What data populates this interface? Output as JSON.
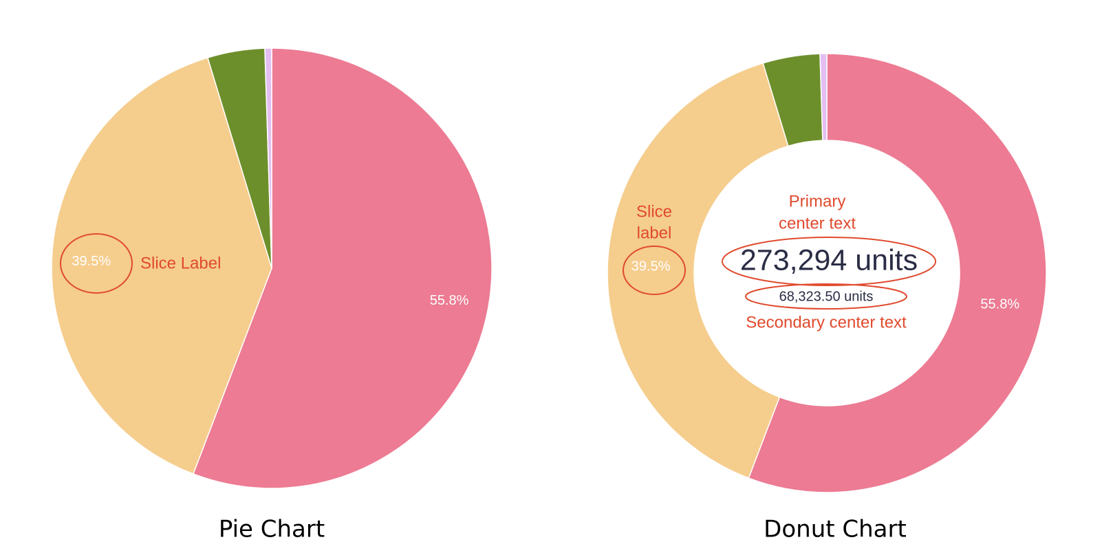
{
  "colors": {
    "pink": "#ec7b93",
    "peach": "#f5cd8d",
    "green": "#6d8f2b",
    "lavender": "#e2bff0",
    "annotation": "#e04a2d",
    "center_text": "#2a2d45"
  },
  "chart_data": [
    {
      "type": "pie",
      "title": "Pie Chart",
      "slices": [
        {
          "value": 55.8,
          "color": "#ec7b93",
          "label": "55.8%"
        },
        {
          "value": 39.5,
          "color": "#f5cd8d",
          "label": "39.5%"
        },
        {
          "value": 4.2,
          "color": "#6d8f2b",
          "label": ""
        },
        {
          "value": 0.5,
          "color": "#e2bff0",
          "label": ""
        }
      ],
      "annotations": {
        "slice_label": "Slice Label"
      }
    },
    {
      "type": "pie",
      "title": "Donut Chart",
      "slices": [
        {
          "value": 55.8,
          "color": "#ec7b93",
          "label": "55.8%"
        },
        {
          "value": 39.5,
          "color": "#f5cd8d",
          "label": "39.5%"
        },
        {
          "value": 4.2,
          "color": "#6d8f2b",
          "label": ""
        },
        {
          "value": 0.5,
          "color": "#e2bff0",
          "label": ""
        }
      ],
      "center_text": {
        "primary": "273,294 units",
        "secondary": "68,323.50 units"
      },
      "annotations": {
        "slice_label_line1": "Slice",
        "slice_label_line2": "label",
        "primary_line1": "Primary",
        "primary_line2": "center text",
        "secondary": "Secondary center text"
      }
    }
  ]
}
